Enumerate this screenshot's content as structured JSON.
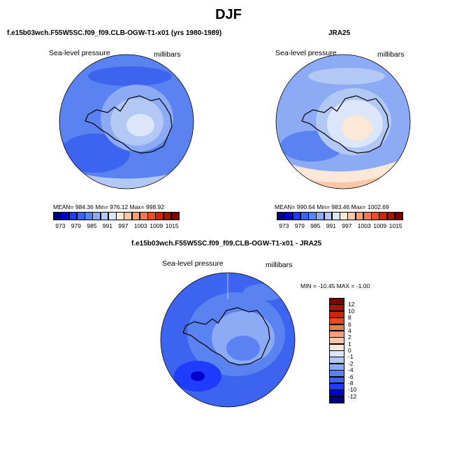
{
  "page_title": "DJF",
  "panels": {
    "model": {
      "case_title": "f.e15b03wch.F55W5SC.f09_f09.CLB-OGW-T1-x01 (yrs 1980-1989)",
      "variable": "Sea-level pressure",
      "units": "millibars",
      "stats": "MEAN= 984.36   Min= 976.12   Max= 998.92"
    },
    "obs": {
      "case_title": "JRA25",
      "variable": "Sea-level pressure",
      "units": "millibars",
      "stats": "MEAN= 990.64   Min= 983.46   Max= 1002.69"
    },
    "diff": {
      "case_title": "f.e15b03wch.F55W5SC.f09_f09.CLB-OGW-T1-x01 - JRA25",
      "variable": "Sea-level pressure",
      "units": "millibars",
      "stats": "MIN = -10.45  MAX =   -1.00"
    }
  },
  "colorbar_abs": {
    "tick_labels": [
      "973",
      "979",
      "985",
      "991",
      "997",
      "1003",
      "1009",
      "1015"
    ],
    "colors": [
      "#00007f",
      "#0000c8",
      "#1e3cff",
      "#3c64f0",
      "#5a82f0",
      "#8caaf5",
      "#b4c8f5",
      "#dce6fa",
      "#fde8d8",
      "#fac8a8",
      "#f6a078",
      "#f07850",
      "#e65028",
      "#cc2800",
      "#a01400",
      "#780000"
    ]
  },
  "colorbar_diff": {
    "tick_labels": [
      "12",
      "10",
      "8",
      "6",
      "4",
      "2",
      "1",
      "0",
      "-1",
      "-2",
      "-4",
      "-6",
      "-8",
      "-10",
      "-12"
    ],
    "colors": [
      "#780000",
      "#a01400",
      "#cc2800",
      "#e64a1e",
      "#f07850",
      "#f6a078",
      "#fac8a8",
      "#fde8d8",
      "#dce6fa",
      "#b4c8f5",
      "#8caaf5",
      "#5a82f0",
      "#3c64f0",
      "#1e3cff",
      "#0000c8",
      "#00007f"
    ]
  }
}
